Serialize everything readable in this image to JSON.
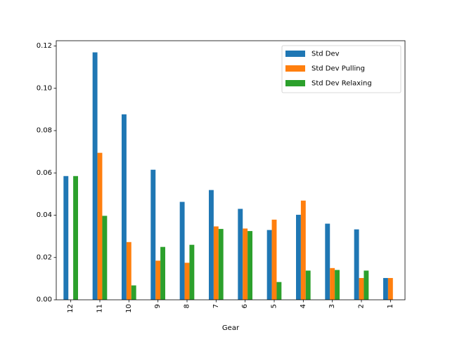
{
  "chart_data": {
    "type": "bar",
    "title": "",
    "xlabel": "Gear",
    "ylabel": "",
    "categories": [
      "12",
      "11",
      "10",
      "9",
      "8",
      "7",
      "6",
      "5",
      "4",
      "3",
      "2",
      "1"
    ],
    "series": [
      {
        "name": "Std Dev",
        "color": "#1f77b4",
        "values": [
          0.0585,
          0.117,
          0.0877,
          0.0615,
          0.0463,
          0.0519,
          0.043,
          0.033,
          0.0402,
          0.036,
          0.0333,
          0.0103
        ]
      },
      {
        "name": "Std Dev Pulling",
        "color": "#ff7f0e",
        "values": [
          0,
          0.0695,
          0.0273,
          0.0185,
          0.0175,
          0.0347,
          0.0337,
          0.0379,
          0.0469,
          0.015,
          0.0103,
          0.0103
        ]
      },
      {
        "name": "Std Dev Relaxing",
        "color": "#2ca02c",
        "values": [
          0.0585,
          0.0397,
          0.0068,
          0.025,
          0.026,
          0.0335,
          0.0325,
          0.0084,
          0.0138,
          0.0141,
          0.0138,
          0
        ]
      }
    ],
    "ylim": [
      0,
      0.1225
    ],
    "yticks": [
      0.0,
      0.02,
      0.04,
      0.06,
      0.08,
      0.1,
      0.12
    ],
    "ytick_labels": [
      "0.00",
      "0.02",
      "0.04",
      "0.06",
      "0.08",
      "0.10",
      "0.12"
    ],
    "xtick_rotation": "vertical",
    "grid": false,
    "legend_position": "top-right"
  }
}
